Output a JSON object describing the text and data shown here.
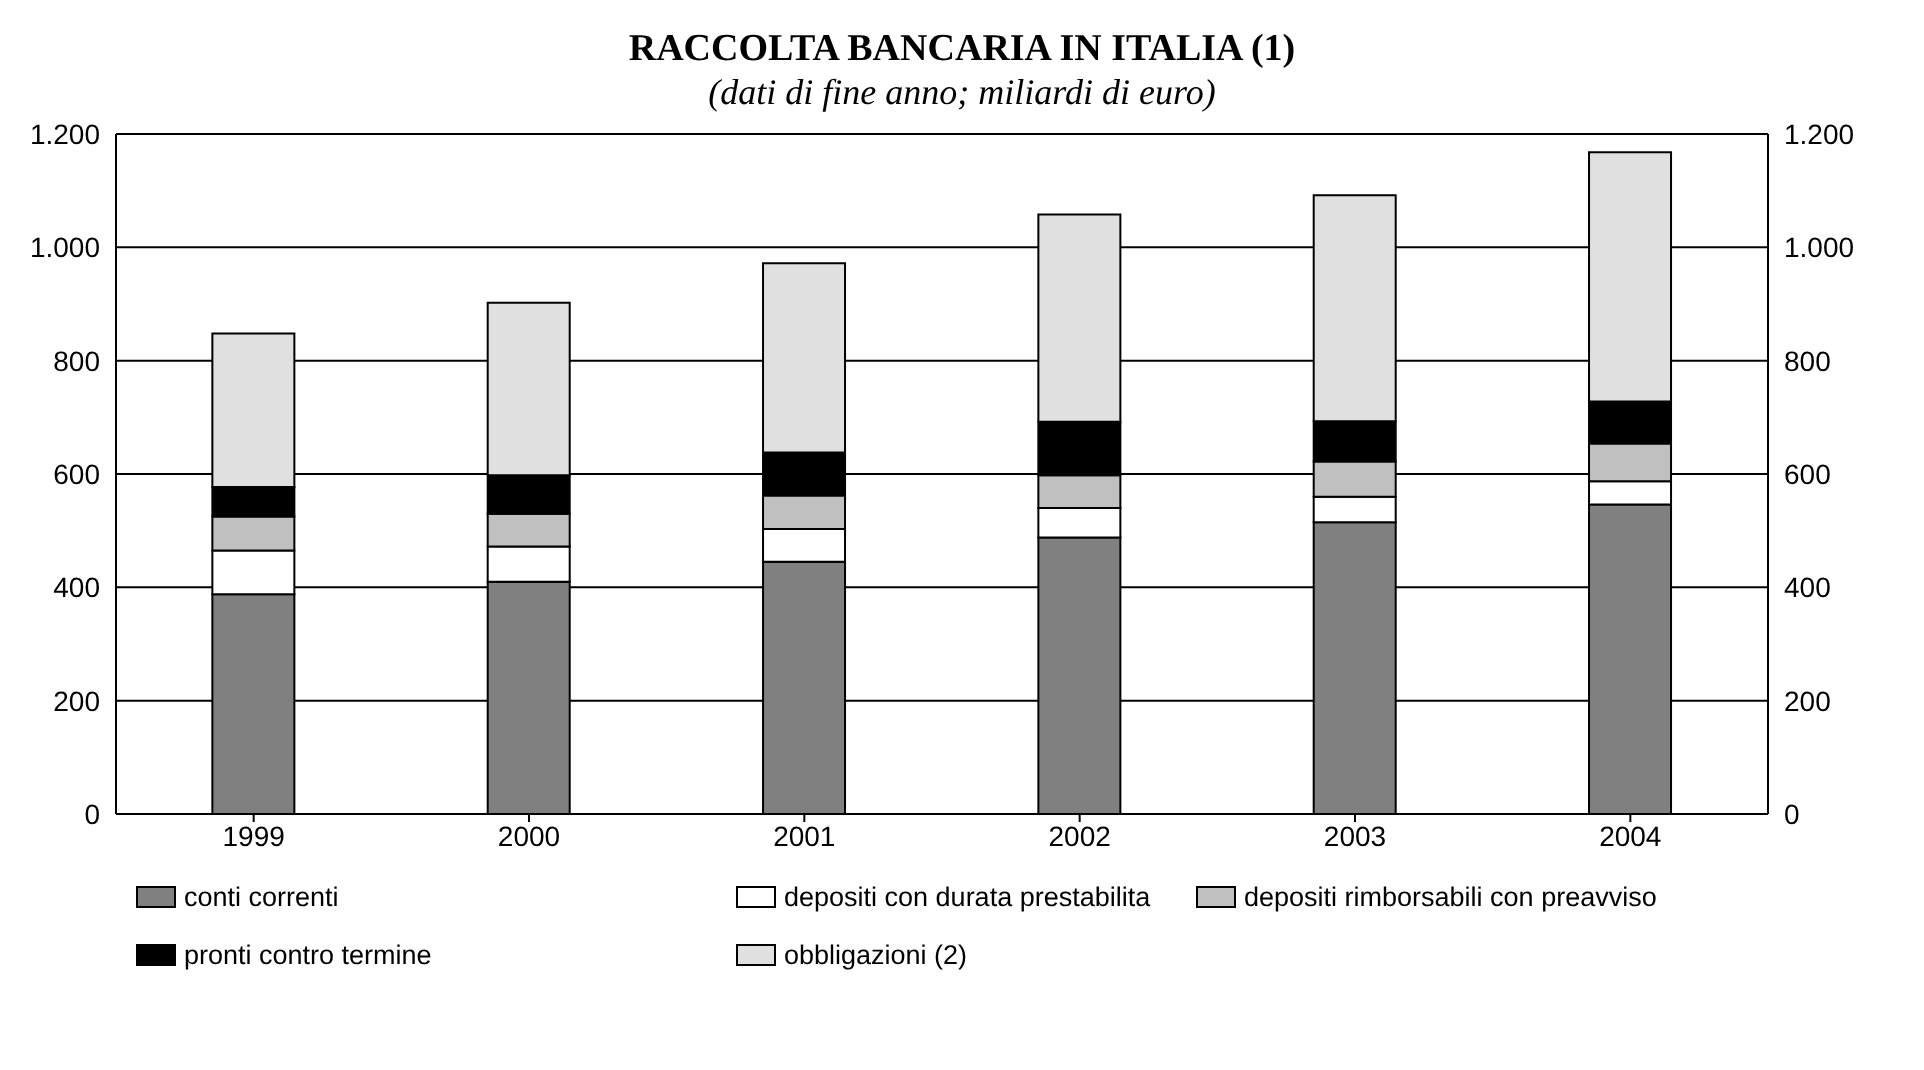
{
  "chart_data": {
    "type": "bar",
    "title": "RACCOLTA BANCARIA IN ITALIA (1)",
    "subtitle": "(dati di fine anno; miliardi di euro)",
    "categories": [
      "1999",
      "2000",
      "2001",
      "2002",
      "2003",
      "2004"
    ],
    "stacked": true,
    "series": [
      {
        "name": "conti correnti",
        "color": "#808080",
        "values": [
          388,
          410,
          445,
          488,
          515,
          546
        ]
      },
      {
        "name": "depositi con durata prestabilita",
        "color": "#ffffff",
        "values": [
          77,
          62,
          58,
          52,
          45,
          41
        ]
      },
      {
        "name": "depositi rimborsabili con preavviso",
        "color": "#c0c0c0",
        "values": [
          60,
          58,
          59,
          58,
          62,
          67
        ]
      },
      {
        "name": "pronti contro termine",
        "color": "#000000",
        "values": [
          52,
          68,
          76,
          94,
          71,
          74
        ]
      },
      {
        "name": "obbligazioni (2)",
        "color": "#e0e0e0",
        "values": [
          271,
          304,
          334,
          366,
          399,
          440
        ]
      }
    ],
    "ylim": [
      0,
      1200
    ],
    "yticks": [
      0,
      200,
      400,
      600,
      800,
      {
        "value": 1000,
        "label": "1.000"
      },
      {
        "value": 1200,
        "label": "1.200"
      }
    ],
    "y2lim": [
      0,
      1200
    ],
    "y2ticks": [
      0,
      200,
      400,
      600,
      800,
      {
        "value": 1000,
        "label": "1.000"
      },
      {
        "value": 1200,
        "label": "1.200"
      }
    ],
    "grid": "y",
    "legend": "bottom"
  }
}
